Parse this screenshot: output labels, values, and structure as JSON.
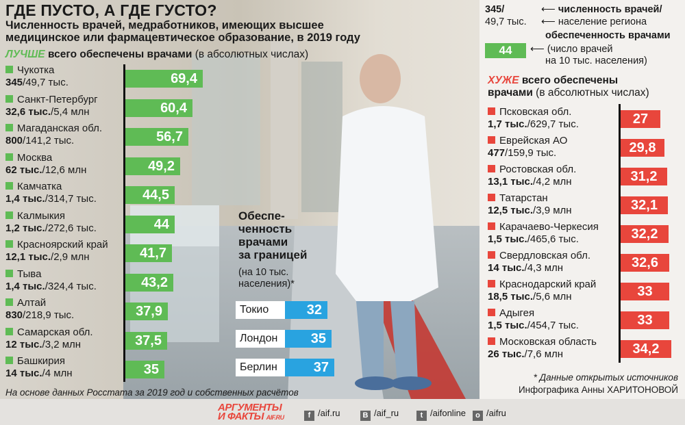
{
  "colors": {
    "good": "#5fbb55",
    "bad": "#e8463c",
    "abroad": "#29a3e0"
  },
  "title": "ГДЕ ПУСТО, А ГДЕ ГУСТО?",
  "subtitle": "Численность врачей, медработников, имеющих высшее медицинское или фармацевтическое образование, в 2019 году",
  "best": {
    "kw": "ЛУЧШЕ",
    "rest": " всего обеспечены врачами",
    "note": " (в абсолютных числах)",
    "regions": [
      {
        "name": "Чукотка",
        "doctors": "345",
        "pop": "/49,7 тыс.",
        "value": "69,4"
      },
      {
        "name": "Санкт-Петербург",
        "doctors": "32,6 тыс.",
        "pop": "/5,4 млн",
        "value": "60,4"
      },
      {
        "name": "Магаданская обл.",
        "doctors": "800",
        "pop": "/141,2 тыс.",
        "value": "56,7"
      },
      {
        "name": "Москва",
        "doctors": "62 тыс.",
        "pop": "/12,6 млн",
        "value": "49,2"
      },
      {
        "name": "Камчатка",
        "doctors": "1,4 тыс.",
        "pop": "/314,7 тыс.",
        "value": "44,5"
      },
      {
        "name": "Калмыкия",
        "doctors": "1,2 тыс.",
        "pop": "/272,6 тыс.",
        "value": "44"
      },
      {
        "name": "Красноярский край",
        "doctors": "12,1 тыс.",
        "pop": "/2,9 млн",
        "value": "41,7"
      },
      {
        "name": "Тыва",
        "doctors": "1,4 тыс.",
        "pop": "/324,4 тыс.",
        "value": "43,2"
      },
      {
        "name": "Алтай",
        "doctors": "830",
        "pop": "/218,9 тыс.",
        "value": "37,9"
      },
      {
        "name": "Самарская обл.",
        "doctors": "12 тыс.",
        "pop": "/3,2 млн",
        "value": "37,5"
      },
      {
        "name": "Башкирия",
        "doctors": "14 тыс.",
        "pop": "/4 млн",
        "value": "35"
      }
    ]
  },
  "worst": {
    "kw": "ХУЖЕ",
    "rest": " всего обеспечены",
    "rest2": "врачами",
    "note": " (в абсолютных числах)",
    "regions": [
      {
        "name": "Псковская обл.",
        "doctors": "1,7 тыс.",
        "pop": "/629,7 тыс.",
        "value": "27"
      },
      {
        "name": "Еврейская АО",
        "doctors": "477",
        "pop": "/159,9 тыс.",
        "value": "29,8"
      },
      {
        "name": "Ростовская обл.",
        "doctors": "13,1 тыс.",
        "pop": "/4,2 млн",
        "value": "31,2"
      },
      {
        "name": "Татарстан",
        "doctors": "12,5 тыс.",
        "pop": "/3,9 млн",
        "value": "32,1"
      },
      {
        "name": "Карачаево-Черкесия",
        "doctors": "1,5 тыс.",
        "pop": "/465,6 тыс.",
        "value": "32,2"
      },
      {
        "name": "Свердловская обл.",
        "doctors": "14 тыс.",
        "pop": "/4,3 млн",
        "value": "32,6"
      },
      {
        "name": "Краснодарский край",
        "doctors": "18,5 тыс.",
        "pop": "/5,6 млн",
        "value": "33"
      },
      {
        "name": "Адыгея",
        "doctors": "1,5 тыс.",
        "pop": "/454,7 тыс.",
        "value": "33"
      },
      {
        "name": "Московская область",
        "doctors": "26 тыс.",
        "pop": "/7,6 млн",
        "value": "34,2"
      }
    ]
  },
  "abroad": {
    "title_lines": [
      "Обеспе-",
      "ченность",
      "врачами",
      "за границей"
    ],
    "sub_lines": [
      "(на 10 тыс.",
      "населения)*"
    ],
    "cities": [
      {
        "name": "Токио",
        "value": "32"
      },
      {
        "name": "Лондон",
        "value": "35"
      },
      {
        "name": "Берлин",
        "value": "37"
      }
    ]
  },
  "legend": {
    "ex_doctors": "345/",
    "ex_pop": "49,7 тыс.",
    "doctors_label": "численность врачей/",
    "pop_label": "население региона",
    "supply_label": "обеспеченность врачами",
    "ex_value": "44",
    "supply_note1": "(число врачей",
    "supply_note2": "на 10 тыс. населения)"
  },
  "footer": {
    "source": "На основе данных Росстата за 2019 год и собственных расчётов",
    "asterisk": "* Данные открытых источников",
    "credit": "Инфографика Анны ХАРИТОНОВОЙ",
    "logo_line1": "АРГУМЕНТЫ",
    "logo_line2": "И ФАКТЫ",
    "logo_site": "AIF.RU",
    "social": [
      {
        "icon": "f",
        "icon_name": "facebook-icon",
        "text": "/aif.ru"
      },
      {
        "icon": "В",
        "icon_name": "vk-icon",
        "text": "/aif_ru"
      },
      {
        "icon": "t",
        "icon_name": "twitter-icon",
        "text": "/aifonline"
      },
      {
        "icon": "о",
        "icon_name": "odnoklassniki-icon",
        "text": "/aifru"
      }
    ]
  },
  "chart_data": [
    {
      "type": "bar",
      "title": "ЛУЧШЕ всего обеспечены врачами",
      "categories": [
        "Чукотка",
        "Санкт-Петербург",
        "Магаданская обл.",
        "Москва",
        "Камчатка",
        "Калмыкия",
        "Красноярский край",
        "Тыва",
        "Алтай",
        "Самарская обл.",
        "Башкирия"
      ],
      "values": [
        69.4,
        60.4,
        56.7,
        49.2,
        44.5,
        44,
        41.7,
        43.2,
        37.9,
        37.5,
        35
      ]
    },
    {
      "type": "bar",
      "title": "ХУЖЕ всего обеспечены врачами",
      "categories": [
        "Псковская обл.",
        "Еврейская АО",
        "Ростовская обл.",
        "Татарстан",
        "Карачаево-Черкесия",
        "Свердловская обл.",
        "Краснодарский край",
        "Адыгея",
        "Московская область"
      ],
      "values": [
        27,
        29.8,
        31.2,
        32.1,
        32.2,
        32.6,
        33,
        33,
        34.2
      ]
    },
    {
      "type": "bar",
      "title": "Обеспеченность врачами за границей",
      "categories": [
        "Токио",
        "Лондон",
        "Берлин"
      ],
      "values": [
        32,
        35,
        37
      ]
    }
  ]
}
